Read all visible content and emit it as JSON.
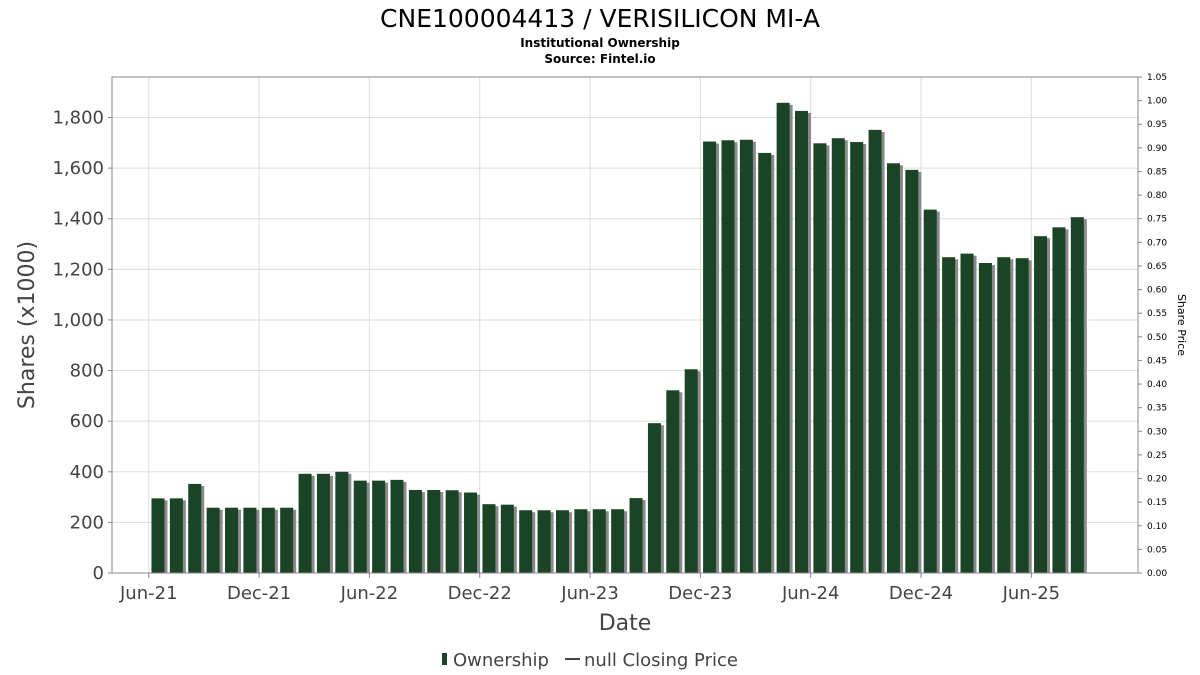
{
  "chart_data": {
    "type": "bar",
    "title": "CNE100004413 / VERISILICON MI-A",
    "subtitle": "Institutional Ownership",
    "source": "Source: Fintel.io",
    "xlabel": "Date",
    "ylabel": "Shares (x1000)",
    "ylabel_right": "Share Price",
    "ylim": [
      0,
      1960
    ],
    "ylim_right": [
      0,
      1.05
    ],
    "grid": true,
    "legend_position": "bottom",
    "y_ticks": [
      "0",
      "200",
      "400",
      "600",
      "800",
      "1,000",
      "1,200",
      "1,400",
      "1,600",
      "1,800"
    ],
    "y_tick_values": [
      0,
      200,
      400,
      600,
      800,
      1000,
      1200,
      1400,
      1600,
      1800
    ],
    "y_right_ticks": [
      "0.00",
      "0.05",
      "0.10",
      "0.15",
      "0.20",
      "0.25",
      "0.30",
      "0.35",
      "0.40",
      "0.45",
      "0.50",
      "0.55",
      "0.60",
      "0.65",
      "0.70",
      "0.75",
      "0.80",
      "0.85",
      "0.90",
      "0.95",
      "1.00",
      "1.05"
    ],
    "y_right_tick_values": [
      0,
      0.05,
      0.1,
      0.15,
      0.2,
      0.25,
      0.3,
      0.35,
      0.4,
      0.45,
      0.5,
      0.55,
      0.6,
      0.65,
      0.7,
      0.75,
      0.8,
      0.85,
      0.9,
      0.95,
      1.0,
      1.05
    ],
    "x_ticks": [
      "Jun-21",
      "Dec-21",
      "Jun-22",
      "Dec-22",
      "Jun-23",
      "Dec-23",
      "Jun-24",
      "Dec-24",
      "Jun-25"
    ],
    "x_tick_months": [
      0,
      6,
      12,
      18,
      24,
      30,
      36,
      42,
      48
    ],
    "x_range_months": [
      -2,
      53.8
    ],
    "series": [
      {
        "name": "Ownership",
        "color": "#1a4425",
        "months": [
          0.5,
          1.5,
          2.5,
          3.5,
          4.5,
          5.5,
          6.5,
          7.5,
          8.5,
          9.5,
          10.5,
          11.5,
          12.5,
          13.5,
          14.5,
          15.5,
          16.5,
          17.5,
          18.5,
          19.5,
          20.5,
          21.5,
          22.5,
          23.5,
          24.5,
          25.5,
          26.5,
          27.5,
          28.5,
          29.5,
          30.5,
          31.5,
          32.5,
          33.5,
          34.5,
          35.5,
          36.5,
          37.5,
          38.5,
          39.5,
          40.5,
          41.5,
          42.5,
          43.5,
          44.5,
          45.5,
          46.5,
          47.5,
          48.5,
          49.5,
          50.5
        ],
        "values": [
          295,
          295,
          352,
          258,
          258,
          258,
          258,
          258,
          392,
          392,
          400,
          365,
          365,
          368,
          328,
          328,
          327,
          318,
          272,
          270,
          248,
          248,
          248,
          252,
          252,
          252,
          296,
          592,
          722,
          805,
          1705,
          1710,
          1712,
          1660,
          1858,
          1826,
          1698,
          1718,
          1703,
          1751,
          1619,
          1593,
          1436,
          1248,
          1262,
          1225,
          1248,
          1244,
          1331,
          1366,
          1406
        ]
      },
      {
        "name": "null Closing Price",
        "color": "#444444",
        "values": []
      }
    ]
  }
}
